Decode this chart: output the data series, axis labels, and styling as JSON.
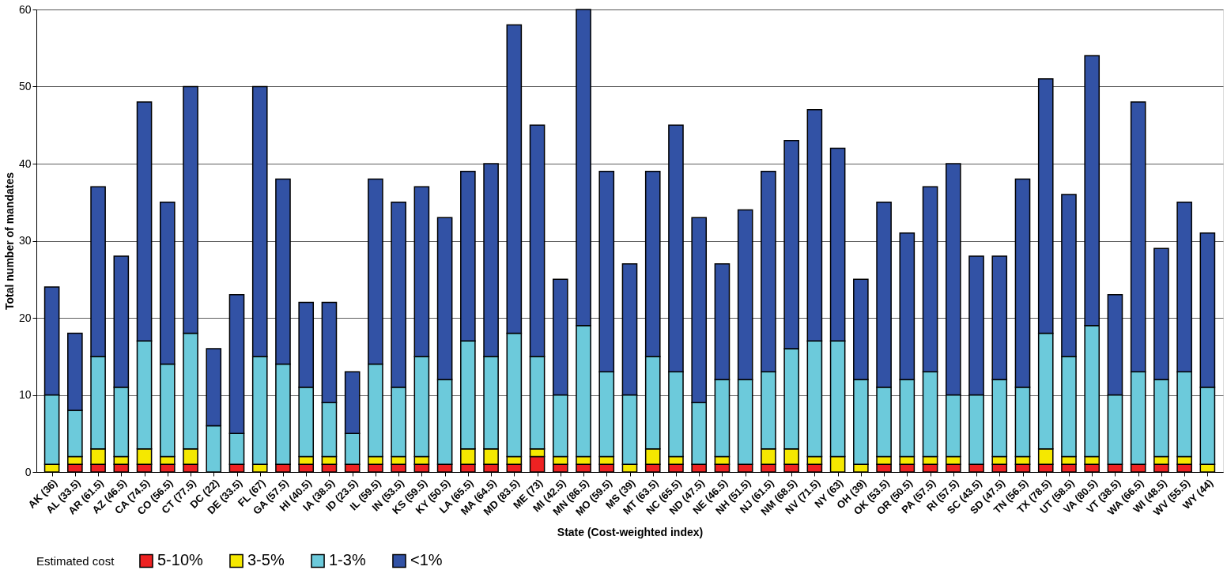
{
  "chart_data": {
    "type": "bar",
    "stacked": true,
    "xlabel": "State (Cost-weighted index)",
    "ylabel": "Total number of mandates",
    "legend_title": "Estimated cost",
    "legend": "bottom",
    "grid": "y",
    "categories": [
      "AK (36)",
      "AL (33.5)",
      "AR (61.5)",
      "AZ (46.5)",
      "CA (74.5)",
      "CO (56.5)",
      "CT (77.5)",
      "DC (22)",
      "DE (33.5)",
      "FL (67)",
      "GA (57.5)",
      "HI (40.5)",
      "IA (38.5)",
      "ID (23.5)",
      "IL (59.5)",
      "IN (53.5)",
      "KS (59.5)",
      "KY (50.5)",
      "LA (65.5)",
      "MA (64.5)",
      "MD (83.5)",
      "ME (73)",
      "MI (42.5)",
      "MN (86.5)",
      "MO (59.5)",
      "MS (39)",
      "MT (63.5)",
      "NC (65.5)",
      "ND (47.5)",
      "NE (46.5)",
      "NH (51.5)",
      "NJ (61.5)",
      "NM (68.5)",
      "NV (71.5)",
      "NY (63)",
      "OH (39)",
      "OK (53.5)",
      "OR (50.5)",
      "PA (57.5)",
      "RI (57.5)",
      "SC (43.5)",
      "SD (47.5)",
      "TN (56.5)",
      "TX (78.5)",
      "UT (58.5)",
      "VA (80.5)",
      "VT (38.5)",
      "WA (66.5)",
      "WI (48.5)",
      "WV (55.5)",
      "WY (44)"
    ],
    "ylim": [
      0,
      60
    ],
    "yticks": [
      0,
      10,
      20,
      30,
      40,
      50,
      60
    ],
    "series": [
      {
        "name": "5-10%",
        "color": "#ee2222",
        "values": [
          0,
          1,
          1,
          1,
          1,
          1,
          1,
          0,
          1,
          0,
          1,
          1,
          1,
          1,
          1,
          1,
          1,
          1,
          1,
          1,
          1,
          2,
          1,
          1,
          1,
          0,
          1,
          1,
          1,
          1,
          1,
          1,
          1,
          1,
          0,
          0,
          1,
          1,
          1,
          1,
          1,
          1,
          1,
          1,
          1,
          1,
          1,
          1,
          1,
          1,
          0
        ]
      },
      {
        "name": "3-5%",
        "color": "#f5e800",
        "values": [
          1,
          1,
          2,
          1,
          2,
          1,
          2,
          0,
          0,
          1,
          0,
          1,
          1,
          0,
          1,
          1,
          1,
          0,
          2,
          2,
          1,
          1,
          1,
          1,
          1,
          1,
          2,
          1,
          0,
          1,
          0,
          2,
          2,
          1,
          2,
          1,
          1,
          1,
          1,
          1,
          0,
          1,
          1,
          2,
          1,
          1,
          0,
          0,
          1,
          1,
          1
        ]
      },
      {
        "name": "1-3%",
        "color": "#6ccadb",
        "values": [
          9,
          6,
          12,
          9,
          14,
          12,
          15,
          6,
          4,
          14,
          13,
          9,
          7,
          4,
          12,
          9,
          13,
          11,
          14,
          12,
          16,
          12,
          8,
          17,
          11,
          9,
          12,
          11,
          8,
          10,
          11,
          10,
          13,
          15,
          15,
          11,
          9,
          10,
          11,
          8,
          9,
          10,
          9,
          15,
          13,
          17,
          9,
          12,
          10,
          11,
          10
        ]
      },
      {
        "name": "<1%",
        "color": "#3252a5",
        "values": [
          14,
          10,
          22,
          17,
          31,
          21,
          32,
          10,
          18,
          35,
          24,
          11,
          13,
          8,
          24,
          24,
          22,
          21,
          22,
          25,
          40,
          30,
          15,
          41,
          26,
          17,
          24,
          32,
          24,
          15,
          22,
          26,
          27,
          30,
          25,
          13,
          24,
          19,
          24,
          30,
          18,
          16,
          27,
          33,
          21,
          35,
          13,
          35,
          17,
          22,
          20
        ]
      }
    ]
  }
}
